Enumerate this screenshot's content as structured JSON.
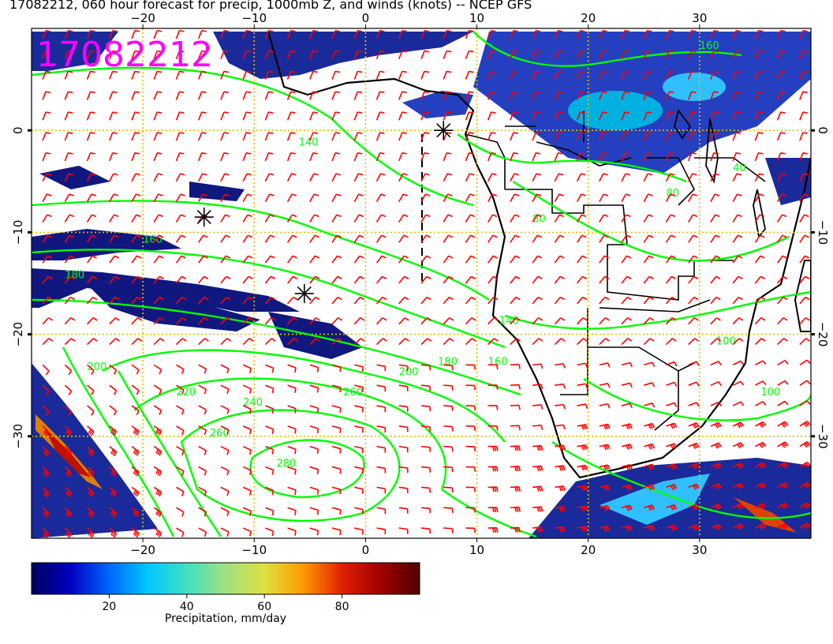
{
  "title": "17082212, 060 hour forecast for precip, 1000mb Z, and winds (knots) -- NCEP GFS",
  "stamp": "17082212",
  "map": {
    "lon_range": [
      -30,
      40
    ],
    "lat_range": [
      -40,
      10
    ],
    "lon_ticks": [
      -20,
      -10,
      0,
      10,
      20,
      30
    ],
    "lat_ticks": [
      0,
      -10,
      -20,
      -30
    ],
    "lon_tick_labels": [
      "−20",
      "−10",
      "0",
      "10",
      "20",
      "30"
    ],
    "lat_tick_labels": [
      "0",
      "−10",
      "−20",
      "−30"
    ],
    "contour_labels": [
      {
        "text": "160",
        "lon": 30,
        "lat": 8
      },
      {
        "text": "140",
        "lon": -6,
        "lat": -1.5
      },
      {
        "text": "160",
        "lon": -20,
        "lat": -11
      },
      {
        "text": "180",
        "lon": -27,
        "lat": -14.5
      },
      {
        "text": "200",
        "lon": -25,
        "lat": -23.5
      },
      {
        "text": "220",
        "lon": -17,
        "lat": -26
      },
      {
        "text": "240",
        "lon": -11,
        "lat": -27
      },
      {
        "text": "260",
        "lon": -14,
        "lat": -30
      },
      {
        "text": "280",
        "lon": -8,
        "lat": -33
      },
      {
        "text": "260",
        "lon": -2,
        "lat": -26
      },
      {
        "text": "200",
        "lon": 3,
        "lat": -24
      },
      {
        "text": "180",
        "lon": 6.5,
        "lat": -23
      },
      {
        "text": "160",
        "lon": 11,
        "lat": -23
      },
      {
        "text": "140",
        "lon": 12,
        "lat": -19
      },
      {
        "text": "100",
        "lon": 35.5,
        "lat": -26
      },
      {
        "text": "100",
        "lon": 31.5,
        "lat": -21
      },
      {
        "text": "80",
        "lon": 15,
        "lat": -9
      },
      {
        "text": "80",
        "lon": 27,
        "lat": -6.5
      },
      {
        "text": "40",
        "lon": 33,
        "lat": -4
      }
    ],
    "markers": [
      {
        "name": "marker-1",
        "lon": 7,
        "lat": 0
      },
      {
        "name": "marker-2",
        "lon": -14.5,
        "lat": -8.5
      },
      {
        "name": "marker-3",
        "lon": -5.5,
        "lat": -16
      }
    ]
  },
  "colorbar": {
    "label": "Precipitation, mm/day",
    "ticks": [
      20,
      40,
      60,
      80
    ],
    "range": [
      0,
      100
    ],
    "colors": [
      "#000060",
      "#0000c0",
      "#0066ff",
      "#00c8ff",
      "#40e0c0",
      "#a0e080",
      "#e0e040",
      "#ff9900",
      "#e02000",
      "#a00000",
      "#500000"
    ]
  },
  "colors": {
    "contour": "#00ff00",
    "wind": "#ff0000",
    "grid": "#e0c000",
    "coast": "#000000",
    "stamp": "#ff00ff",
    "ocean": "#ffffff"
  }
}
